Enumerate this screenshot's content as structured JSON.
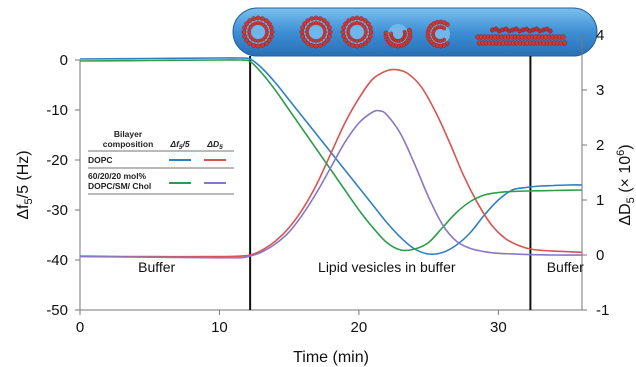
{
  "chart_data": {
    "type": "line",
    "xlabel": "Time (min)",
    "ylabel_left": "Δf5/5 (Hz)",
    "ylabel_right": "ΔD5 (× 10^6)",
    "x_range": [
      0,
      36
    ],
    "y_left_range": [
      -50,
      0
    ],
    "y_right_range": [
      -1,
      4
    ],
    "x_ticks": [
      "0",
      "10",
      "20",
      "30"
    ],
    "y_left_ticks": [
      "0",
      "-10",
      "-20",
      "-30",
      "-40",
      "-50"
    ],
    "y_right_ticks": [
      "4",
      "3",
      "2",
      "1",
      "0",
      "-1"
    ],
    "vertical_lines": [
      12.2,
      32.3
    ],
    "regions": [
      {
        "label": "Buffer",
        "x": 5.5
      },
      {
        "label": "Lipid vesicles in buffer",
        "x": 22
      },
      {
        "label": "Buffer",
        "x": 34.8
      }
    ],
    "legend": {
      "header": [
        "Bilayer",
        "composition"
      ],
      "col_freq_main": "Δf",
      "col_freq_sub": "5",
      "col_freq_tail": "/5",
      "col_diss_main": "ΔD",
      "col_diss_sub": "5",
      "rows": [
        {
          "label_lines": [
            "DOPC"
          ],
          "freq_color": "#2f7fc4",
          "diss_color": "#d9534f"
        },
        {
          "label_lines": [
            "60/20/20 mol%",
            "DOPC/SM/ Chol"
          ],
          "freq_color": "#2e9e4a",
          "diss_color": "#8a76c2"
        }
      ]
    },
    "series": [
      {
        "name": "DOPC Δf5/5",
        "axis": "left",
        "color": "#2f7fc4",
        "x": [
          0,
          5,
          10,
          11.5,
          12.2,
          13,
          14,
          15,
          16,
          17,
          18,
          19,
          20,
          21,
          22,
          23,
          24,
          25,
          26,
          27,
          28,
          29,
          30,
          31,
          32,
          33,
          34,
          35,
          36
        ],
        "y": [
          0.2,
          0.3,
          0.4,
          0.4,
          0.2,
          -1.5,
          -4.5,
          -8,
          -11.5,
          -15,
          -18.5,
          -22,
          -25.5,
          -29,
          -32.5,
          -35.5,
          -37.8,
          -38.8,
          -38.5,
          -37,
          -34.5,
          -31,
          -28,
          -26,
          -25.5,
          -25.2,
          -25.1,
          -25,
          -25
        ]
      },
      {
        "name": "DOPC ΔD5",
        "axis": "right",
        "color": "#d9534f",
        "x": [
          0,
          5,
          10,
          11.5,
          12.2,
          13,
          14,
          15,
          16,
          17,
          18,
          19,
          20,
          21,
          22,
          22.7,
          23.5,
          24.5,
          25.5,
          26.5,
          27.5,
          28.5,
          29.5,
          30.5,
          31.5,
          32.5,
          34,
          36
        ],
        "y": [
          -0.02,
          -0.03,
          -0.03,
          -0.02,
          0.0,
          0.08,
          0.25,
          0.5,
          0.85,
          1.3,
          1.85,
          2.4,
          2.85,
          3.2,
          3.35,
          3.37,
          3.3,
          3.05,
          2.6,
          2.05,
          1.45,
          0.95,
          0.55,
          0.3,
          0.17,
          0.1,
          0.07,
          0.05
        ]
      },
      {
        "name": "60/20/20 mol% DOPC/SM/ Chol Δf5/5",
        "axis": "left",
        "color": "#2e9e4a",
        "x": [
          0,
          5,
          10,
          11.5,
          12.2,
          13,
          14,
          15,
          16,
          17,
          18,
          19,
          20,
          21,
          22,
          23,
          24,
          25,
          26,
          27,
          28,
          29,
          30,
          31,
          32,
          34,
          36
        ],
        "y": [
          -0.2,
          -0.1,
          0.0,
          0.0,
          -0.3,
          -2.5,
          -6,
          -10,
          -14,
          -18,
          -22,
          -26,
          -30,
          -33.5,
          -36.5,
          -38,
          -37.8,
          -36.5,
          -33.5,
          -30.5,
          -28.3,
          -27,
          -26.5,
          -26.3,
          -26.2,
          -26.1,
          -26
        ]
      },
      {
        "name": "60/20/20 mol% DOPC/SM/ Chol ΔD5",
        "axis": "right",
        "color": "#8a76c2",
        "x": [
          0,
          5,
          10,
          11.5,
          12.2,
          13,
          14,
          15,
          16,
          17,
          18,
          19,
          20,
          21,
          21.5,
          22,
          23,
          24,
          25,
          26,
          27,
          28,
          29,
          30,
          31,
          32,
          34,
          36
        ],
        "y": [
          -0.03,
          -0.04,
          -0.05,
          -0.05,
          -0.02,
          0.05,
          0.2,
          0.42,
          0.75,
          1.15,
          1.6,
          2.05,
          2.4,
          2.6,
          2.62,
          2.55,
          2.2,
          1.65,
          1.05,
          0.55,
          0.25,
          0.12,
          0.06,
          0.03,
          0.02,
          0.01,
          0.0,
          0.0
        ]
      }
    ]
  }
}
